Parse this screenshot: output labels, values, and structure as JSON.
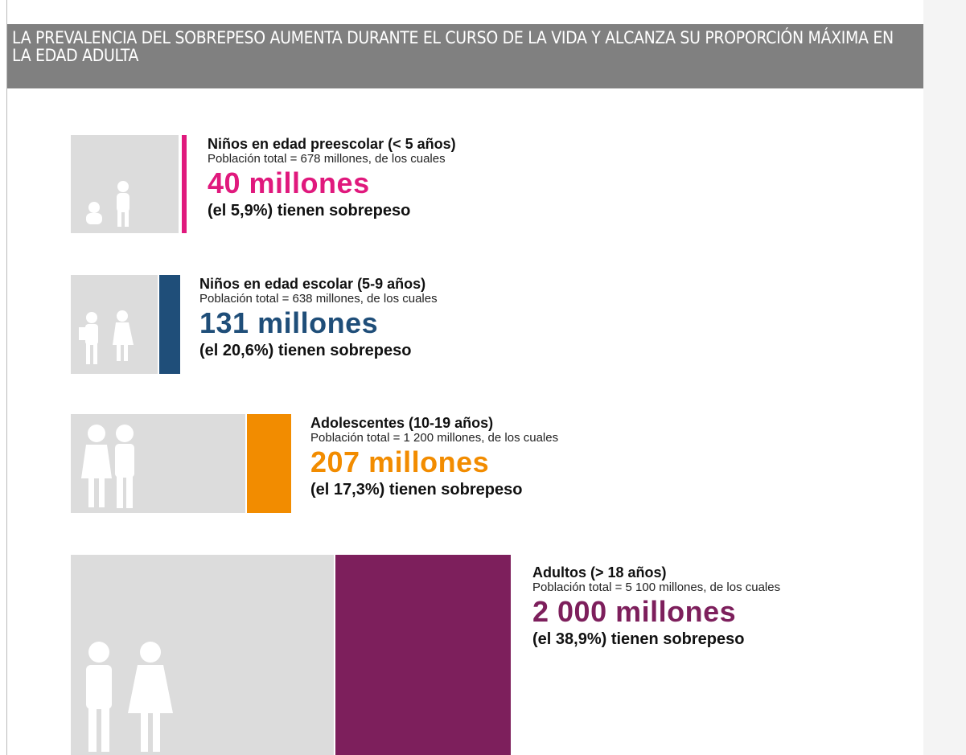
{
  "header": {
    "title": "LA PREVALENCIA DEL SOBREPESO AUMENTA DURANTE EL CURSO DE LA VIDA Y ALCANZA SU PROPORCIÓN MÁXIMA EN LA EDAD ADULTA"
  },
  "groups": [
    {
      "label": "Niños en edad preescolar (< 5 años)",
      "population": "Población total = 678 millones, de los cuales",
      "count": "40 millones",
      "share": "(el 5,9%) tienen sobrepeso"
    },
    {
      "label": "Niños en edad escolar (5-9 años)",
      "population": "Población total = 638 millones, de los cuales",
      "count": "131 millones",
      "share": "(el 20,6%) tienen sobrepeso"
    },
    {
      "label": "Adolescentes (10-19 años)",
      "population": "Población total = 1 200 millones, de los cuales",
      "count": "207 millones",
      "share": "(el 17,3%) tienen sobrepeso"
    },
    {
      "label": "Adultos (> 18 años)",
      "population": "Población total = 5 100 millones, de los cuales",
      "count": "2 000 millones",
      "share": "(el 38,9%) tienen sobrepeso"
    }
  ]
}
